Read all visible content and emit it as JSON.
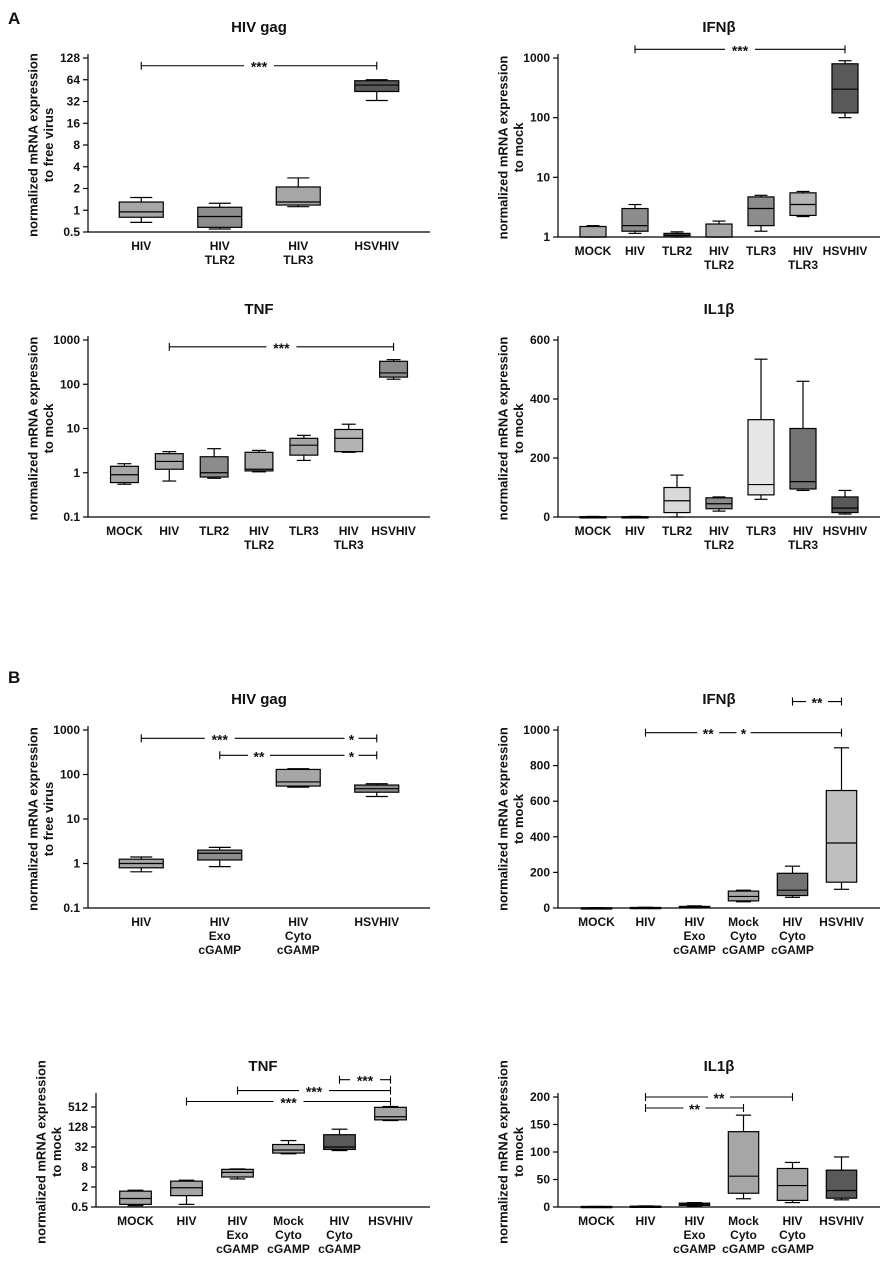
{
  "panels": [
    {
      "label": "A"
    },
    {
      "label": "B"
    }
  ],
  "chart_data": [
    {
      "panel": "A",
      "type": "box",
      "title": "HIV gag",
      "ylabel": [
        "normalized mRNA expression",
        "to free virus"
      ],
      "yscale": "log2",
      "ylim": [
        0.5,
        128
      ],
      "yticks": [
        "0.5",
        "1",
        "2",
        "4",
        "8",
        "16",
        "32",
        "64",
        "128"
      ],
      "categories": [
        "HIV",
        "HIV\nTLR2",
        "HIV\nTLR3",
        "HSVHIV"
      ],
      "boxes": [
        {
          "min": 0.68,
          "q1": 0.8,
          "median": 0.95,
          "q3": 1.3,
          "max": 1.5,
          "color": "#a6a6a6"
        },
        {
          "min": 0.55,
          "q1": 0.58,
          "median": 0.82,
          "q3": 1.1,
          "max": 1.25,
          "color": "#8c8c8c"
        },
        {
          "min": 1.12,
          "q1": 1.18,
          "median": 1.3,
          "q3": 2.1,
          "max": 2.8,
          "color": "#a6a6a6"
        },
        {
          "min": 33,
          "q1": 44,
          "median": 54,
          "q3": 62,
          "max": 64,
          "color": "#595959"
        }
      ],
      "sig": [
        {
          "from": 0,
          "to": 3,
          "label": "***",
          "y": 100
        }
      ]
    },
    {
      "panel": "A",
      "type": "box",
      "title": "IFNβ",
      "ylabel": [
        "normalized mRNA expression",
        "to mock"
      ],
      "yscale": "log10",
      "ylim": [
        1,
        1000
      ],
      "yticks": [
        "1",
        "10",
        "100",
        "1000"
      ],
      "categories": [
        "MOCK",
        "HIV",
        "TLR2",
        "HIV\nTLR2",
        "TLR3",
        "HIV\nTLR3",
        "HSVHIV"
      ],
      "boxes": [
        {
          "min": 1,
          "q1": 1,
          "median": 1,
          "q3": 1.5,
          "max": 1.55,
          "color": "#a6a6a6"
        },
        {
          "min": 1.15,
          "q1": 1.25,
          "median": 1.55,
          "q3": 3.0,
          "max": 3.5,
          "color": "#8c8c8c"
        },
        {
          "min": 1.0,
          "q1": 1.05,
          "median": 1.08,
          "q3": 1.15,
          "max": 1.22,
          "color": "#a6a6a6"
        },
        {
          "min": 1.0,
          "q1": 1.0,
          "median": 1.0,
          "q3": 1.65,
          "max": 1.85,
          "color": "#a6a6a6"
        },
        {
          "min": 1.25,
          "q1": 1.55,
          "median": 3.0,
          "q3": 4.7,
          "max": 5.0,
          "color": "#8c8c8c"
        },
        {
          "min": 2.2,
          "q1": 2.3,
          "median": 3.5,
          "q3": 5.5,
          "max": 5.8,
          "color": "#b3b3b3"
        },
        {
          "min": 100,
          "q1": 120,
          "median": 300,
          "q3": 800,
          "max": 900,
          "color": "#595959"
        }
      ],
      "sig": [
        {
          "from": 1,
          "to": 6,
          "label": "***",
          "y": 1400
        }
      ]
    },
    {
      "panel": "A",
      "type": "box",
      "title": "TNF",
      "ylabel": [
        "normalized mRNA expression",
        "to mock"
      ],
      "yscale": "log10",
      "ylim": [
        0.1,
        1000
      ],
      "yticks": [
        "0.1",
        "1",
        "10",
        "100",
        "1000"
      ],
      "categories": [
        "MOCK",
        "HIV",
        "TLR2",
        "HIV\nTLR2",
        "TLR3",
        "HIV\nTLR3",
        "HSVHIV"
      ],
      "boxes": [
        {
          "min": 0.55,
          "q1": 0.6,
          "median": 0.9,
          "q3": 1.4,
          "max": 1.6,
          "color": "#a6a6a6"
        },
        {
          "min": 0.65,
          "q1": 1.2,
          "median": 1.8,
          "q3": 2.7,
          "max": 3.0,
          "color": "#a6a6a6"
        },
        {
          "min": 0.75,
          "q1": 0.8,
          "median": 1.0,
          "q3": 2.3,
          "max": 3.5,
          "color": "#8c8c8c"
        },
        {
          "min": 1.05,
          "q1": 1.1,
          "median": 1.2,
          "q3": 2.9,
          "max": 3.2,
          "color": "#a6a6a6"
        },
        {
          "min": 1.9,
          "q1": 2.5,
          "median": 4.2,
          "q3": 6.0,
          "max": 7.0,
          "color": "#a6a6a6"
        },
        {
          "min": 2.9,
          "q1": 3.0,
          "median": 6.0,
          "q3": 9.5,
          "max": 12.5,
          "color": "#b3b3b3"
        },
        {
          "min": 130,
          "q1": 145,
          "median": 180,
          "q3": 330,
          "max": 360,
          "color": "#8c8c8c"
        }
      ],
      "sig": [
        {
          "from": 1,
          "to": 6,
          "label": "***",
          "y": 700
        }
      ]
    },
    {
      "panel": "A",
      "type": "box",
      "title": "IL1β",
      "ylabel": [
        "normalized mRNA expression",
        "to mock"
      ],
      "yscale": "linear",
      "ylim": [
        0,
        600
      ],
      "yticks": [
        "0",
        "200",
        "400",
        "600"
      ],
      "categories": [
        "MOCK",
        "HIV",
        "TLR2",
        "HIV\nTLR2",
        "TLR3",
        "HIV\nTLR3",
        "HSVHIV"
      ],
      "boxes": [
        {
          "min": 0,
          "q1": 0,
          "median": 0,
          "q3": 1,
          "max": 2,
          "color": "#a6a6a6"
        },
        {
          "min": 0,
          "q1": 0,
          "median": 0,
          "q3": 1,
          "max": 2,
          "color": "#a6a6a6"
        },
        {
          "min": 0,
          "q1": 15,
          "median": 55,
          "q3": 100,
          "max": 142,
          "color": "#d9d9d9"
        },
        {
          "min": 20,
          "q1": 28,
          "median": 45,
          "q3": 65,
          "max": 68,
          "color": "#8c8c8c"
        },
        {
          "min": 60,
          "q1": 75,
          "median": 110,
          "q3": 330,
          "max": 535,
          "color": "#e6e6e6"
        },
        {
          "min": 90,
          "q1": 95,
          "median": 120,
          "q3": 300,
          "max": 460,
          "color": "#737373"
        },
        {
          "min": 10,
          "q1": 15,
          "median": 30,
          "q3": 68,
          "max": 90,
          "color": "#595959"
        }
      ],
      "sig": []
    },
    {
      "panel": "B",
      "type": "box",
      "title": "HIV gag",
      "ylabel": [
        "normalized mRNA expression",
        "to free virus"
      ],
      "yscale": "log10",
      "ylim": [
        0.1,
        1000
      ],
      "yticks": [
        "0.1",
        "1",
        "10",
        "100",
        "1000"
      ],
      "categories": [
        "HIV",
        "HIV\nExo\ncGAMP",
        "HIV\nCyto\ncGAMP",
        "HSVHIV"
      ],
      "boxes": [
        {
          "min": 0.65,
          "q1": 0.8,
          "median": 1.0,
          "q3": 1.25,
          "max": 1.4,
          "color": "#a6a6a6"
        },
        {
          "min": 0.85,
          "q1": 1.2,
          "median": 1.7,
          "q3": 2.0,
          "max": 2.3,
          "color": "#8c8c8c"
        },
        {
          "min": 52,
          "q1": 55,
          "median": 68,
          "q3": 130,
          "max": 135,
          "color": "#a6a6a6"
        },
        {
          "min": 32,
          "q1": 40,
          "median": 48,
          "q3": 58,
          "max": 62,
          "color": "#8c8c8c"
        }
      ],
      "sig": [
        {
          "from": 0,
          "to": 3,
          "label": "***",
          "mid_label": "*",
          "mid_from": 2,
          "y": 650
        },
        {
          "from": 1,
          "to": 3,
          "label": "**",
          "mid_label": "*",
          "mid_from": 2,
          "y": 270
        }
      ]
    },
    {
      "panel": "B",
      "type": "box",
      "title": "IFNβ",
      "ylabel": [
        "normalized mRNA expression",
        "to mock"
      ],
      "yscale": "linear",
      "ylim": [
        0,
        1000
      ],
      "yticks": [
        "0",
        "200",
        "400",
        "600",
        "800",
        "1000"
      ],
      "categories": [
        "MOCK",
        "HIV",
        "HIV\nExo\ncGAMP",
        "Mock\nCyto\ncGAMP",
        "HIV\nCyto\ncGAMP",
        "HSVHIV"
      ],
      "boxes": [
        {
          "min": 0,
          "q1": 0,
          "median": 0,
          "q3": 1,
          "max": 1.5,
          "color": "#a6a6a6"
        },
        {
          "min": 0,
          "q1": 1,
          "median": 2,
          "q3": 3,
          "max": 4,
          "color": "#8c8c8c"
        },
        {
          "min": 2,
          "q1": 3,
          "median": 5,
          "q3": 9,
          "max": 12,
          "color": "#8c8c8c"
        },
        {
          "min": 35,
          "q1": 40,
          "median": 65,
          "q3": 95,
          "max": 100,
          "color": "#a6a6a6"
        },
        {
          "min": 60,
          "q1": 70,
          "median": 100,
          "q3": 195,
          "max": 235,
          "color": "#737373"
        },
        {
          "min": 105,
          "q1": 145,
          "median": 365,
          "q3": 660,
          "max": 900,
          "color": "#bfbfbf"
        }
      ],
      "sig": [
        {
          "from": 1,
          "to": 5,
          "label": "*",
          "mid_label": "**",
          "y": 985
        },
        {
          "from": 4,
          "to": 5,
          "label": "**",
          "y": 1160
        }
      ]
    },
    {
      "panel": "B",
      "type": "box",
      "title": "TNF",
      "ylabel": [
        "normalized mRNA expression",
        "to mock"
      ],
      "yscale": "log2",
      "ylim": [
        0.5,
        1024
      ],
      "yticks": [
        "0.5",
        "2",
        "8",
        "32",
        "128",
        "512"
      ],
      "categories": [
        "MOCK",
        "HIV",
        "HIV\nExo\ncGAMP",
        "Mock\nCyto\ncGAMP",
        "HIV\nCyto\ncGAMP",
        "HSVHIV"
      ],
      "boxes": [
        {
          "min": 0.55,
          "q1": 0.6,
          "median": 0.9,
          "q3": 1.5,
          "max": 1.6,
          "color": "#a6a6a6"
        },
        {
          "min": 0.6,
          "q1": 1.1,
          "median": 1.9,
          "q3": 3.0,
          "max": 3.2,
          "color": "#a6a6a6"
        },
        {
          "min": 3.5,
          "q1": 4.0,
          "median": 5.5,
          "q3": 6.8,
          "max": 7.0,
          "color": "#a6a6a6"
        },
        {
          "min": 20,
          "q1": 21,
          "median": 26,
          "q3": 38,
          "max": 50,
          "color": "#a6a6a6"
        },
        {
          "min": 25,
          "q1": 27,
          "median": 32,
          "q3": 75,
          "max": 110,
          "color": "#595959"
        },
        {
          "min": 200,
          "q1": 210,
          "median": 260,
          "q3": 500,
          "max": 530,
          "color": "#a6a6a6"
        }
      ],
      "sig": [
        {
          "from": 1,
          "to": 5,
          "label": "***",
          "y": 750
        },
        {
          "from": 2,
          "to": 5,
          "label": "***",
          "y": 1600
        },
        {
          "from": 4,
          "to": 5,
          "label": "***",
          "y": 3400
        }
      ]
    },
    {
      "panel": "B",
      "type": "box",
      "title": "IL1β",
      "ylabel": [
        "normalized mRNA expression",
        "to mock"
      ],
      "yscale": "linear",
      "ylim": [
        0,
        200
      ],
      "yticks": [
        "0",
        "50",
        "100",
        "150",
        "200"
      ],
      "categories": [
        "MOCK",
        "HIV",
        "HIV\nExo\ncGAMP",
        "Mock\nCyto\ncGAMP",
        "HIV\nCyto\ncGAMP",
        "HSVHIV"
      ],
      "boxes": [
        {
          "min": 0,
          "q1": 0,
          "median": 0,
          "q3": 1,
          "max": 1,
          "color": "#a6a6a6"
        },
        {
          "min": 0,
          "q1": 0.5,
          "median": 1,
          "q3": 1.5,
          "max": 2,
          "color": "#a6a6a6"
        },
        {
          "min": 2,
          "q1": 3,
          "median": 5,
          "q3": 7,
          "max": 8,
          "color": "#595959"
        },
        {
          "min": 15,
          "q1": 25,
          "median": 56,
          "q3": 137,
          "max": 167,
          "color": "#a6a6a6"
        },
        {
          "min": 8,
          "q1": 12,
          "median": 39,
          "q3": 70,
          "max": 81,
          "color": "#a6a6a6"
        },
        {
          "min": 13,
          "q1": 16,
          "median": 30,
          "q3": 67,
          "max": 91,
          "color": "#595959"
        }
      ],
      "sig": [
        {
          "from": 1,
          "to": 3,
          "label": "**",
          "y": 180
        },
        {
          "from": 1,
          "to": 4,
          "label": "**",
          "y": 200
        }
      ]
    }
  ]
}
